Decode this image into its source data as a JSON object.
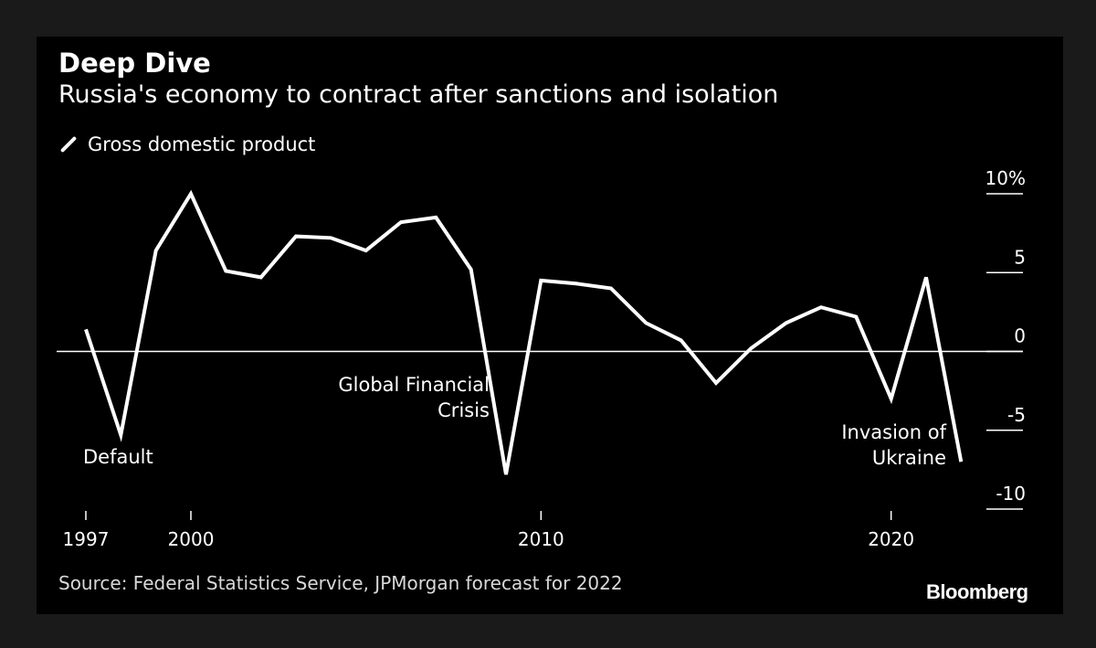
{
  "title": "Deep Dive",
  "subtitle": "Russia's economy to contract after sanctions and isolation",
  "legend": {
    "label": "Gross domestic product"
  },
  "source": "Source: Federal Statistics Service, JPMorgan forecast for 2022",
  "brand": "Bloomberg",
  "colors": {
    "background": "#000000",
    "line": "#ffffff",
    "page": "#1a1a1a"
  },
  "chart_data": {
    "type": "line",
    "title": "Deep Dive",
    "subtitle": "Russia's economy to contract after sanctions and isolation",
    "xlabel": "",
    "ylabel": "",
    "xlim": [
      1997,
      2022
    ],
    "ylim": [
      -10,
      10
    ],
    "x_ticks": [
      1997,
      2000,
      2010,
      2020
    ],
    "x_tick_labels": [
      "1997",
      "2000",
      "2010",
      "2020"
    ],
    "y_ticks": [
      10,
      5,
      0,
      -5,
      -10
    ],
    "y_tick_labels": [
      "10%",
      "5",
      "0",
      "-5",
      "-10"
    ],
    "zero_line": true,
    "grid": false,
    "series": [
      {
        "name": "Gross domestic product",
        "x": [
          1997,
          1998,
          1999,
          2000,
          2001,
          2002,
          2003,
          2004,
          2005,
          2006,
          2007,
          2008,
          2009,
          2010,
          2011,
          2012,
          2013,
          2014,
          2015,
          2016,
          2017,
          2018,
          2019,
          2020,
          2021,
          2022
        ],
        "values": [
          1.4,
          -5.3,
          6.4,
          10.0,
          5.1,
          4.7,
          7.3,
          7.2,
          6.4,
          8.2,
          8.5,
          5.2,
          -7.8,
          4.5,
          4.3,
          4.0,
          1.8,
          0.7,
          -2.0,
          0.2,
          1.8,
          2.8,
          2.2,
          -3.0,
          4.7,
          -7.0
        ]
      }
    ],
    "annotations": [
      {
        "text": [
          "Default"
        ],
        "x": 1998
      },
      {
        "text": [
          "Global Financial",
          "Crisis"
        ],
        "x": 2009
      },
      {
        "text": [
          "Invasion of",
          "Ukraine"
        ],
        "x": 2022
      }
    ]
  }
}
